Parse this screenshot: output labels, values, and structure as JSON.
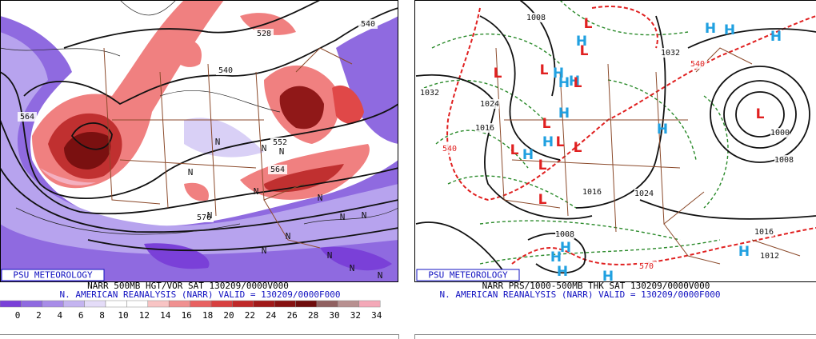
{
  "panels": [
    {
      "logo": "PSU METEOROLOGY",
      "caption": "NARR 500MB HGT/VOR SAT 130209/0000V000",
      "subcaption": "N. AMERICAN REANALYSIS (NARR) VALID = 130209/0000F000",
      "contour_labels": [
        "528",
        "540",
        "540",
        "564",
        "552",
        "564",
        "576"
      ],
      "markers": [
        "N",
        "N",
        "N",
        "N",
        "N",
        "N",
        "N",
        "N",
        "N",
        "N",
        "N",
        "N",
        "N",
        "N"
      ],
      "colorbar": {
        "labels": [
          0,
          2,
          4,
          6,
          8,
          10,
          12,
          14,
          16,
          18,
          20,
          22,
          24,
          26,
          28,
          30,
          32,
          34
        ],
        "colors": [
          "#7a40d8",
          "#8f6ae0",
          "#a88ce8",
          "#c4b4f0",
          "#e4dcf8",
          "#ffffff",
          "#ffffff",
          "#f8c4c4",
          "#f09090",
          "#e86060",
          "#d84040",
          "#c02828",
          "#a01818",
          "#861010",
          "#6e0c0c",
          "#906060",
          "#b89090",
          "#f4a8b8"
        ]
      }
    },
    {
      "logo": "PSU METEOROLOGY",
      "caption": "NARR PRS/1000-500MB THK SAT 130209/0000V000",
      "subcaption": "N. AMERICAN REANALYSIS (NARR) VALID = 130209/0000F000",
      "contour_labels": [
        "1008",
        "1032",
        "1024",
        "1016",
        "1016",
        "1024",
        "1008",
        "1000",
        "1008",
        "1016",
        "1012",
        "1032",
        "540",
        "540",
        "570"
      ],
      "markers": [
        "H",
        "H",
        "H",
        "H",
        "H",
        "H",
        "H",
        "H",
        "H",
        "H",
        "H",
        "H",
        "H",
        "H",
        "H",
        "H",
        "L",
        "L",
        "L",
        "L",
        "L",
        "L",
        "L",
        "L",
        "L",
        "L",
        "L",
        "L"
      ],
      "marker_colors": {
        "H": "#20a0e0",
        "L": "#e02020"
      }
    }
  ]
}
